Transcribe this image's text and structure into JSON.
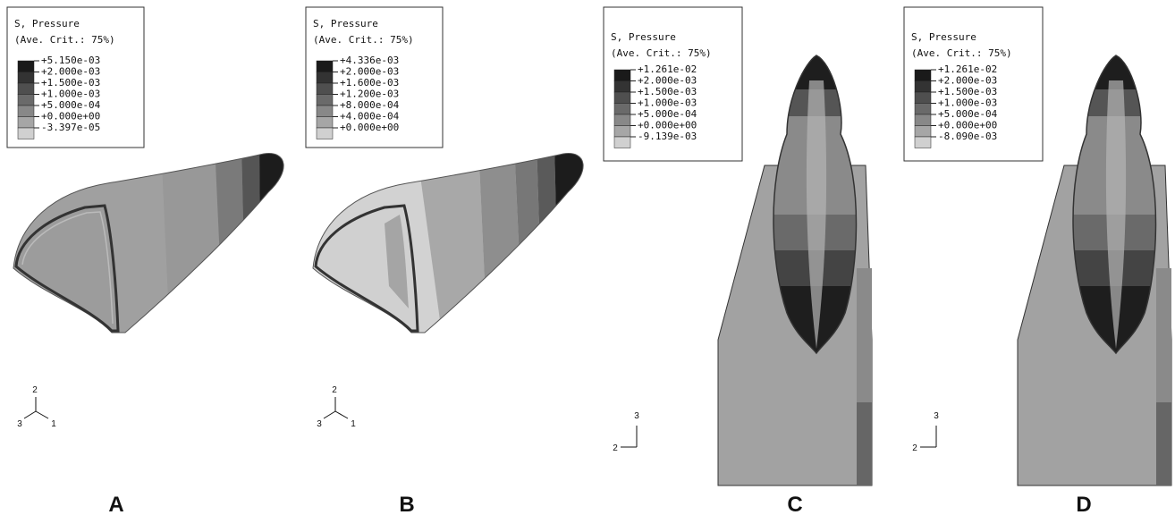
{
  "panels": [
    {
      "label": "A",
      "legend": {
        "title": "S, Pressure",
        "subtitle": "(Ave. Crit.: 75%)",
        "entries": [
          "+5.150e-03",
          "+2.000e-03",
          "+1.500e-03",
          "+1.000e-03",
          "+5.000e-04",
          "+0.000e+00",
          "-3.397e-05"
        ]
      },
      "triad": [
        "2",
        "3",
        "1"
      ]
    },
    {
      "label": "B",
      "legend": {
        "title": "S, Pressure",
        "subtitle": "(Ave. Crit.: 75%)",
        "entries": [
          "+4.336e-03",
          "+2.000e-03",
          "+1.600e-03",
          "+1.200e-03",
          "+8.000e-04",
          "+4.000e-04",
          "+0.000e+00"
        ]
      },
      "triad": [
        "2",
        "3",
        "1"
      ]
    },
    {
      "label": "C",
      "legend": {
        "title": "S, Pressure",
        "subtitle": "(Ave. Crit.: 75%)",
        "entries": [
          "+1.261e-02",
          "+2.000e-03",
          "+1.500e-03",
          "+1.000e-03",
          "+5.000e-04",
          "+0.000e+00",
          "-9.139e-03"
        ]
      },
      "triad": [
        "3",
        "2"
      ]
    },
    {
      "label": "D",
      "legend": {
        "title": "S, Pressure",
        "subtitle": "(Ave. Crit.: 75%)",
        "entries": [
          "+1.261e-02",
          "+2.000e-03",
          "+1.500e-03",
          "+1.000e-03",
          "+5.000e-04",
          "+0.000e+00",
          "-8.090e-03"
        ]
      },
      "triad": [
        "3",
        "2"
      ]
    }
  ]
}
